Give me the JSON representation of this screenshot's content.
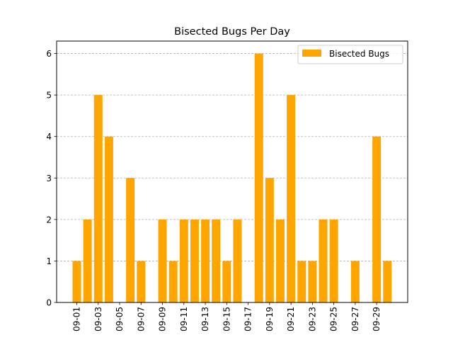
{
  "chart_data": {
    "type": "bar",
    "title": "Bisected Bugs Per Day",
    "xlabel": "",
    "ylabel": "",
    "ylim": [
      0,
      6.3
    ],
    "yticks": [
      0,
      1,
      2,
      3,
      4,
      5,
      6
    ],
    "grid": "y, dashed",
    "legend_position": "top-right",
    "categories": [
      "09-01",
      "09-02",
      "09-03",
      "09-04",
      "09-05",
      "09-06",
      "09-07",
      "09-08",
      "09-09",
      "09-10",
      "09-11",
      "09-12",
      "09-13",
      "09-14",
      "09-15",
      "09-16",
      "09-17",
      "09-18",
      "09-19",
      "09-20",
      "09-21",
      "09-22",
      "09-23",
      "09-24",
      "09-25",
      "09-26",
      "09-27",
      "09-28",
      "09-29",
      "09-30"
    ],
    "xtick_labels": [
      "09-01",
      "09-03",
      "09-05",
      "09-07",
      "09-09",
      "09-11",
      "09-13",
      "09-15",
      "09-17",
      "09-19",
      "09-21",
      "09-23",
      "09-25",
      "09-27",
      "09-29"
    ],
    "series": [
      {
        "name": "Bisected Bugs",
        "color": "#ffa500",
        "values": [
          1,
          2,
          5,
          4,
          0,
          3,
          1,
          0,
          2,
          1,
          2,
          2,
          2,
          2,
          1,
          2,
          0,
          6,
          3,
          2,
          5,
          1,
          1,
          2,
          2,
          0,
          1,
          0,
          4,
          1
        ]
      }
    ]
  }
}
